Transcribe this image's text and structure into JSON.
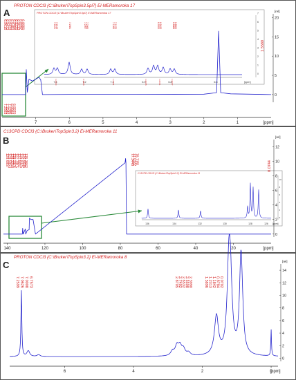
{
  "chart_data": [
    {
      "panel": "A",
      "type": "line",
      "title": "PROTON CDCl3 {C:\\Bruker\\TopSpin3.5pl7} El-MERamoroka 17",
      "xlabel": "[ppm]",
      "ylabel": "[rel]",
      "xlim": [
        8,
        0
      ],
      "ylim": [
        -2,
        21
      ],
      "x_ticks": [
        "7",
        "6",
        "5",
        "4",
        "3",
        "2",
        "1",
        "[ppm]"
      ],
      "y_ticks": [
        "20",
        "15",
        "10",
        "5",
        "0"
      ],
      "x": [
        8.0,
        7.3,
        7.28,
        7.25,
        7.2,
        7.1,
        6.9,
        6.85,
        6.8,
        6.0,
        4.0,
        2.0,
        1.62,
        1.56,
        1.5,
        1.2,
        0.0
      ],
      "values": [
        0,
        0,
        6.5,
        0.6,
        4.0,
        3.5,
        4.5,
        3.8,
        0,
        0.05,
        0.05,
        0.1,
        0.5,
        16.5,
        0.5,
        0.2,
        0
      ],
      "peak_labels_left": [
        "6.9615",
        "6.9473",
        "6.9473",
        "6.9483",
        "6.9484",
        "6.9270",
        "6.9013",
        "6.8992",
        "6.8990"
      ],
      "peak_labels_bottom": [
        "7.2583",
        "7.2540",
        "7.2395",
        "6.8983",
        "6.8970"
      ],
      "peak_labels_right": [
        "1.5580"
      ],
      "inset": {
        "title": "PROTON CDCl3 {C:\\Bruker\\TopSpin3.5pl7} El-MERamoroka 17",
        "xlabel": "[ppm]",
        "x_ticks": [
          "7.4",
          "7.2",
          "7.1",
          "6.9",
          "6.8",
          "6.6"
        ],
        "y_ticks": [
          "0",
          "1",
          "2",
          "3",
          "4",
          "5",
          "6",
          "7"
        ],
        "peak_group_labels": [
          [
            "7.2421",
            "7.2449"
          ],
          [
            "7.2381"
          ],
          [
            "7.2097",
            "7.2085"
          ],
          [
            "7.1099",
            "7.1072"
          ],
          [
            "6.9553",
            "6.9493"
          ],
          [
            "6.8888",
            "6.8800"
          ]
        ],
        "integrals": [
          "1.0000",
          "0.9998",
          "1.0991",
          "1.0008",
          "1.0001",
          "1.0007"
        ]
      }
    },
    {
      "panel": "B",
      "type": "line",
      "title": "C13CPD CDCl3 {C:\\Bruker\\TopSpin3.2} El-MERamoroka 11",
      "xlabel": "[ppm]",
      "ylabel": "[rel]",
      "xlim": [
        142,
        0
      ],
      "ylim": [
        -0.4,
        13
      ],
      "x_ticks": [
        "140",
        "120",
        "100",
        "80",
        "60",
        "40",
        "20",
        "[ppm]"
      ],
      "y_ticks": [
        "12",
        "10",
        "8",
        "6",
        "4",
        "2",
        "0"
      ],
      "x": [
        142,
        132,
        131.8,
        131.5,
        130.4,
        130.2,
        129.4,
        128.4,
        128.2,
        127.5,
        126.3,
        125,
        77.5,
        77.2,
        77.0,
        76.7,
        30,
        0
      ],
      "values": [
        0,
        0,
        0.8,
        0,
        0.7,
        0,
        0.5,
        0.6,
        2.2,
        2.0,
        2.0,
        0,
        9.8,
        10.4,
        9.8,
        0,
        0,
        0
      ],
      "peak_labels_left": [
        "128.6857",
        "128.5853",
        "128.3258",
        "128.2974",
        "127.7815",
        "127.5657",
        "126.8325",
        "126.5698",
        "125.3662"
      ],
      "peak_labels_center": [
        "77.3448",
        "77.0322",
        "76.7151"
      ],
      "peak_labels_right": [
        "0.0744"
      ],
      "inset": {
        "title": "C13CPD CDCl3 {C:\\Bruker\\TopSpin3.2} El-MERamoroka 11",
        "xlabel": "[ppm]",
        "x_ticks": [
          "136",
          "134",
          "132",
          "130",
          "128",
          "126"
        ],
        "y_ticks": [
          "0",
          "2",
          "4",
          "6",
          "8",
          "10"
        ]
      }
    },
    {
      "panel": "C",
      "type": "line",
      "title": "PROTON CDCl3 {C:\\Bruker\\TopSpin3.2} El-MERamoroka 8",
      "xlabel": "[ppm]",
      "ylabel": "[rel]",
      "xlim": [
        7.6,
        -0.2
      ],
      "ylim": [
        -0.5,
        15
      ],
      "x_ticks": [
        "6",
        "4",
        "2",
        "0",
        "[ppm]"
      ],
      "y_ticks": [
        "14",
        "12",
        "10",
        "8",
        "6",
        "4",
        "2",
        "0"
      ],
      "x": [
        7.6,
        7.3,
        7.26,
        7.22,
        7.0,
        6.95,
        6.8,
        3.5,
        2.9,
        2.75,
        2.6,
        2.5,
        2.0,
        1.7,
        1.56,
        1.4,
        1.3,
        1.25,
        1.15,
        1.05,
        0.9,
        0.88,
        0.84,
        0.7,
        0.3,
        0.02,
        0.0,
        -0.02,
        -0.2
      ],
      "values": [
        0,
        0,
        10.8,
        0.5,
        1.2,
        1.0,
        0.2,
        0.4,
        1.2,
        2.3,
        1.9,
        1.1,
        1.2,
        3.0,
        6.8,
        3.2,
        10.6,
        14.5,
        12.5,
        2.0,
        6.0,
        13.8,
        6.5,
        1.0,
        0.5,
        0.5,
        4.5,
        0.3,
        0
      ],
      "peak_labels_left": [
        "7.2599",
        "7.0626",
        "7.0008",
        "6.7573"
      ],
      "peak_labels_center": [
        "2.8705",
        "2.7402",
        "2.6532",
        "2.5508",
        "2.3990"
      ],
      "peak_labels_right": [
        "1.5896",
        "1.2313",
        "1.1842",
        "0.8784",
        "0.0702"
      ]
    }
  ],
  "labels": {
    "panel_a": "A",
    "panel_b": "B",
    "panel_c": "C"
  },
  "colors": {
    "spectrum": "#2222cc",
    "annotation": "#d42020",
    "zoom_box": "#2a8a3a"
  }
}
